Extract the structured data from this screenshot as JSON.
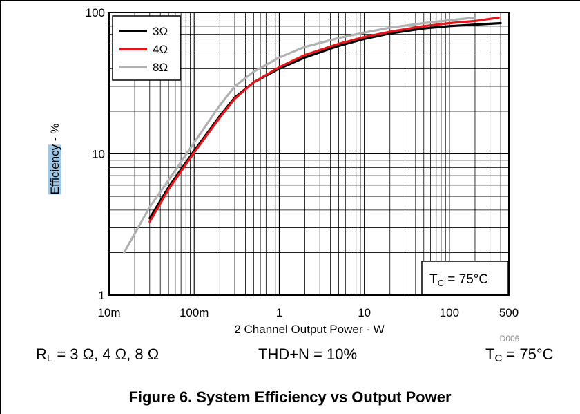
{
  "chart_data": {
    "type": "line",
    "x_scale": "log",
    "y_scale": "log",
    "xlim": [
      0.01,
      500
    ],
    "ylim": [
      1,
      100
    ],
    "x_ticks": [
      {
        "value": 0.01,
        "label": "10m"
      },
      {
        "value": 0.1,
        "label": "100m"
      },
      {
        "value": 1,
        "label": "1"
      },
      {
        "value": 10,
        "label": "10"
      },
      {
        "value": 100,
        "label": "100"
      },
      {
        "value": 500,
        "label": "500"
      }
    ],
    "y_ticks": [
      {
        "value": 1,
        "label": "1"
      },
      {
        "value": 10,
        "label": "10"
      },
      {
        "value": 100,
        "label": "100"
      }
    ],
    "xlabel": "2 Channel Output Power - W",
    "ylabel_highlighted": "Efficiency",
    "ylabel_rest": " - %",
    "grid": true,
    "legend_position": "top-left",
    "annotation": "TC = 75°C",
    "annotation_main": "T",
    "annotation_sub": "C",
    "annotation_rest": " = 75°C",
    "code": "D006",
    "series": [
      {
        "name": "3Ω",
        "color": "#000000",
        "x": [
          0.03,
          0.05,
          0.1,
          0.2,
          0.3,
          0.5,
          1,
          2,
          5,
          10,
          20,
          50,
          100,
          200,
          400
        ],
        "y": [
          3.5,
          5.8,
          10.5,
          18.5,
          25,
          32,
          40,
          48,
          58,
          65,
          71,
          77,
          80,
          82,
          84
        ]
      },
      {
        "name": "4Ω",
        "color": "#e8161b",
        "x": [
          0.03,
          0.05,
          0.1,
          0.2,
          0.3,
          0.5,
          1,
          2,
          5,
          10,
          20,
          50,
          100,
          200,
          380
        ],
        "y": [
          3.3,
          5.6,
          10.2,
          18,
          24.5,
          32,
          41,
          50,
          60,
          67,
          73,
          80,
          84,
          87,
          92
        ]
      },
      {
        "name": "8Ω",
        "color": "#b1b1b1",
        "x": [
          0.015,
          0.03,
          0.05,
          0.1,
          0.2,
          0.3,
          0.5,
          1,
          2,
          5,
          10,
          20,
          50,
          100,
          200
        ],
        "y": [
          2.0,
          4.2,
          6.5,
          12,
          22,
          30,
          38,
          48,
          57,
          66,
          72,
          78,
          84,
          88,
          92
        ]
      }
    ]
  },
  "conditions": {
    "rl_main": "R",
    "rl_sub": "L",
    "rl_rest": " = 3 Ω, 4 Ω, 8 Ω",
    "thd": "THD+N = 10%",
    "tc_main": "T",
    "tc_sub": "C",
    "tc_rest": " = 75°C"
  },
  "caption": "Figure 6. System Efficiency vs Output Power"
}
